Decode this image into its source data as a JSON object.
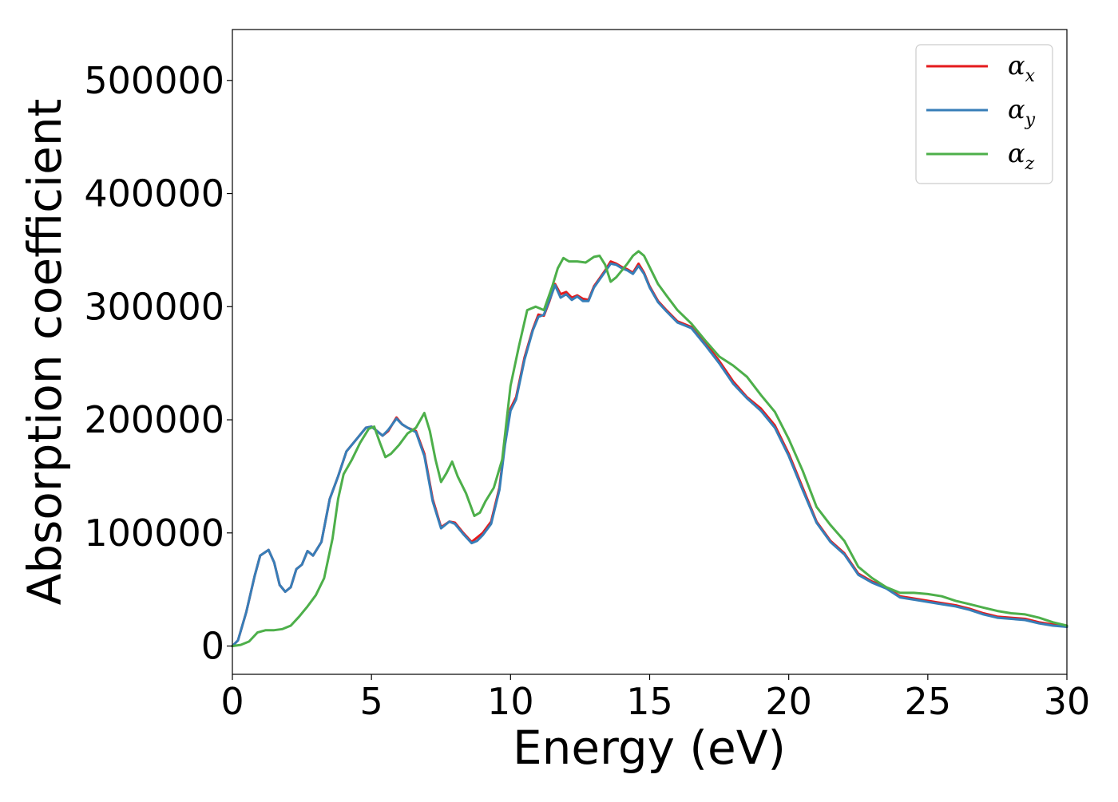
{
  "chart_data": {
    "type": "line",
    "xlabel": "Energy (eV)",
    "ylabel": "Absorption coefficient",
    "xlim": [
      0,
      30
    ],
    "ylim": [
      -25000,
      545000
    ],
    "xticks": [
      0,
      5,
      10,
      15,
      20,
      25,
      30
    ],
    "xtick_labels": [
      "0",
      "5",
      "10",
      "15",
      "20",
      "25",
      "30"
    ],
    "yticks": [
      0,
      100000,
      200000,
      300000,
      400000,
      500000
    ],
    "ytick_labels": [
      "0",
      "100000",
      "200000",
      "300000",
      "400000",
      "500000"
    ],
    "grid": false,
    "legend": "top-right",
    "series": [
      {
        "name": "αx",
        "legend_base": "α",
        "legend_sub": "x",
        "color": "#e41a1c",
        "x": [
          0,
          0.2,
          0.5,
          0.8,
          1.0,
          1.3,
          1.5,
          1.7,
          1.9,
          2.1,
          2.3,
          2.5,
          2.7,
          2.9,
          3.2,
          3.5,
          3.8,
          4.1,
          4.5,
          4.8,
          5.0,
          5.2,
          5.4,
          5.6,
          5.9,
          6.1,
          6.3,
          6.6,
          6.9,
          7.2,
          7.5,
          7.8,
          8.0,
          8.3,
          8.6,
          8.8,
          9.0,
          9.3,
          9.6,
          9.8,
          10.0,
          10.2,
          10.5,
          10.8,
          11.0,
          11.2,
          11.4,
          11.6,
          11.8,
          12.0,
          12.2,
          12.4,
          12.6,
          12.8,
          13.0,
          13.2,
          13.4,
          13.6,
          13.8,
          14.0,
          14.2,
          14.4,
          14.6,
          14.8,
          15.0,
          15.3,
          15.6,
          16.0,
          16.5,
          17.0,
          17.5,
          18.0,
          18.5,
          19.0,
          19.5,
          20.0,
          20.5,
          21.0,
          21.5,
          22.0,
          22.5,
          23.0,
          23.5,
          24.0,
          24.5,
          25.0,
          25.5,
          26.0,
          26.5,
          27.0,
          27.5,
          28.0,
          28.5,
          29.0,
          29.5,
          30.0
        ],
        "y": [
          0,
          5000,
          30000,
          62000,
          80000,
          85000,
          74000,
          54000,
          48000,
          52000,
          68000,
          72000,
          84000,
          80000,
          92000,
          130000,
          150000,
          172000,
          184000,
          193000,
          194000,
          190000,
          186000,
          190000,
          202000,
          196000,
          193000,
          190000,
          170000,
          130000,
          105000,
          110000,
          109000,
          100000,
          92000,
          96000,
          100000,
          110000,
          140000,
          180000,
          210000,
          220000,
          255000,
          280000,
          293000,
          292000,
          305000,
          320000,
          311000,
          313000,
          308000,
          310000,
          307000,
          306000,
          318000,
          325000,
          332000,
          340000,
          338000,
          335000,
          333000,
          330000,
          338000,
          330000,
          318000,
          305000,
          297000,
          287000,
          282000,
          268000,
          252000,
          234000,
          220000,
          210000,
          195000,
          170000,
          140000,
          110000,
          93000,
          82000,
          64000,
          57000,
          52000,
          44000,
          42000,
          40000,
          38000,
          36000,
          33000,
          29000,
          26000,
          25000,
          24000,
          21000,
          19000,
          17000
        ]
      },
      {
        "name": "αy",
        "legend_base": "α",
        "legend_sub": "y",
        "color": "#377eb8",
        "x": [
          0,
          0.2,
          0.5,
          0.8,
          1.0,
          1.3,
          1.5,
          1.7,
          1.9,
          2.1,
          2.3,
          2.5,
          2.7,
          2.9,
          3.2,
          3.5,
          3.8,
          4.1,
          4.5,
          4.8,
          5.0,
          5.2,
          5.4,
          5.6,
          5.9,
          6.1,
          6.3,
          6.6,
          6.9,
          7.2,
          7.5,
          7.8,
          8.0,
          8.3,
          8.6,
          8.8,
          9.0,
          9.3,
          9.6,
          9.8,
          10.0,
          10.2,
          10.5,
          10.8,
          11.0,
          11.2,
          11.4,
          11.6,
          11.8,
          12.0,
          12.2,
          12.4,
          12.6,
          12.8,
          13.0,
          13.2,
          13.4,
          13.6,
          13.8,
          14.0,
          14.2,
          14.4,
          14.6,
          14.8,
          15.0,
          15.3,
          15.6,
          16.0,
          16.5,
          17.0,
          17.5,
          18.0,
          18.5,
          19.0,
          19.5,
          20.0,
          20.5,
          21.0,
          21.5,
          22.0,
          22.5,
          23.0,
          23.5,
          24.0,
          24.5,
          25.0,
          25.5,
          26.0,
          26.5,
          27.0,
          27.5,
          28.0,
          28.5,
          29.0,
          29.5,
          30.0
        ],
        "y": [
          0,
          5000,
          30000,
          62000,
          80000,
          85000,
          74000,
          54000,
          48000,
          52000,
          68000,
          72000,
          84000,
          80000,
          92000,
          130000,
          150000,
          172000,
          184000,
          193000,
          194000,
          190000,
          186000,
          191000,
          201000,
          196000,
          193000,
          189000,
          168000,
          128000,
          104000,
          110000,
          108000,
          99000,
          91000,
          93000,
          98000,
          108000,
          138000,
          178000,
          208000,
          218000,
          253000,
          279000,
          291000,
          293000,
          306000,
          319000,
          308000,
          311000,
          306000,
          309000,
          305000,
          305000,
          317000,
          324000,
          331000,
          338000,
          337000,
          334000,
          332000,
          329000,
          336000,
          329000,
          317000,
          304000,
          296000,
          286000,
          281000,
          266000,
          250000,
          232000,
          219000,
          208000,
          193000,
          168000,
          138000,
          109000,
          92000,
          81000,
          63000,
          56000,
          51000,
          43000,
          41000,
          39000,
          37000,
          35000,
          32000,
          28000,
          25000,
          24000,
          23000,
          20000,
          18000,
          17000
        ]
      },
      {
        "name": "αz",
        "legend_base": "α",
        "legend_sub": "z",
        "color": "#4daf4a",
        "x": [
          0,
          0.3,
          0.6,
          0.9,
          1.2,
          1.5,
          1.8,
          2.1,
          2.4,
          2.7,
          3.0,
          3.3,
          3.6,
          3.8,
          4.0,
          4.3,
          4.6,
          4.9,
          5.1,
          5.3,
          5.5,
          5.7,
          6.0,
          6.3,
          6.6,
          6.9,
          7.1,
          7.3,
          7.5,
          7.7,
          7.9,
          8.1,
          8.4,
          8.7,
          8.9,
          9.1,
          9.4,
          9.7,
          10.0,
          10.3,
          10.6,
          10.9,
          11.2,
          11.5,
          11.7,
          11.9,
          12.1,
          12.4,
          12.7,
          13.0,
          13.2,
          13.4,
          13.6,
          13.8,
          14.0,
          14.2,
          14.4,
          14.6,
          14.8,
          15.0,
          15.3,
          15.6,
          16.0,
          16.5,
          17.0,
          17.5,
          18.0,
          18.5,
          19.0,
          19.5,
          20.0,
          20.5,
          21.0,
          21.5,
          22.0,
          22.5,
          23.0,
          23.5,
          24.0,
          24.5,
          25.0,
          25.5,
          26.0,
          26.5,
          27.0,
          27.5,
          28.0,
          28.5,
          29.0,
          29.5,
          30.0
        ],
        "y": [
          0,
          1000,
          4000,
          12000,
          14000,
          14000,
          15000,
          18000,
          26000,
          35000,
          45000,
          60000,
          95000,
          130000,
          152000,
          165000,
          180000,
          192000,
          194000,
          180000,
          167000,
          170000,
          178000,
          188000,
          193000,
          206000,
          190000,
          165000,
          145000,
          153000,
          163000,
          150000,
          135000,
          115000,
          118000,
          128000,
          140000,
          165000,
          230000,
          265000,
          297000,
          300000,
          297000,
          318000,
          334000,
          343000,
          340000,
          340000,
          339000,
          344000,
          345000,
          337000,
          322000,
          326000,
          332000,
          338000,
          345000,
          349000,
          345000,
          335000,
          320000,
          310000,
          297000,
          285000,
          270000,
          256000,
          248000,
          238000,
          222000,
          207000,
          183000,
          155000,
          123000,
          107000,
          93000,
          70000,
          60000,
          52000,
          47000,
          47000,
          46000,
          44000,
          40000,
          37000,
          34000,
          31000,
          29000,
          28000,
          25000,
          21000,
          18000
        ]
      }
    ]
  }
}
